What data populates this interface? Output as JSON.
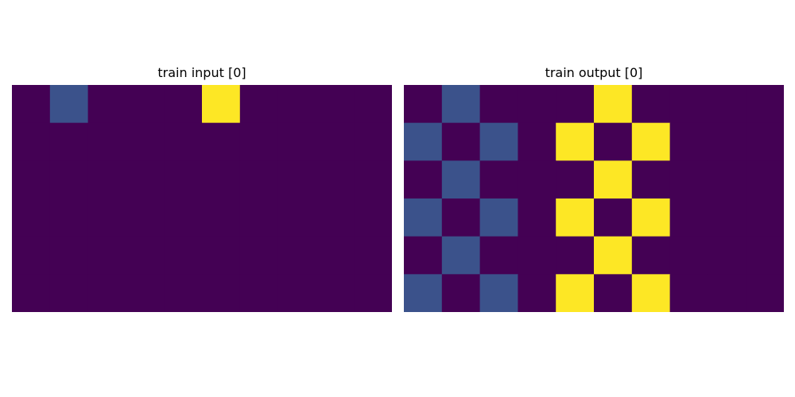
{
  "colors": {
    "0": "#440154",
    "1": "#3b528b",
    "2": "#fde725"
  },
  "panels": [
    {
      "title": "train input [0]",
      "grid": [
        [
          0,
          1,
          0,
          0,
          0,
          2,
          0,
          0,
          0,
          0
        ],
        [
          0,
          0,
          0,
          0,
          0,
          0,
          0,
          0,
          0,
          0
        ],
        [
          0,
          0,
          0,
          0,
          0,
          0,
          0,
          0,
          0,
          0
        ],
        [
          0,
          0,
          0,
          0,
          0,
          0,
          0,
          0,
          0,
          0
        ],
        [
          0,
          0,
          0,
          0,
          0,
          0,
          0,
          0,
          0,
          0
        ],
        [
          0,
          0,
          0,
          0,
          0,
          0,
          0,
          0,
          0,
          0
        ]
      ]
    },
    {
      "title": "train output [0]",
      "grid": [
        [
          0,
          1,
          0,
          0,
          0,
          2,
          0,
          0,
          0,
          0
        ],
        [
          1,
          0,
          1,
          0,
          2,
          0,
          2,
          0,
          0,
          0
        ],
        [
          0,
          1,
          0,
          0,
          0,
          2,
          0,
          0,
          0,
          0
        ],
        [
          1,
          0,
          1,
          0,
          2,
          0,
          2,
          0,
          0,
          0
        ],
        [
          0,
          1,
          0,
          0,
          0,
          2,
          0,
          0,
          0,
          0
        ],
        [
          1,
          0,
          1,
          0,
          2,
          0,
          2,
          0,
          0,
          0
        ]
      ]
    }
  ]
}
